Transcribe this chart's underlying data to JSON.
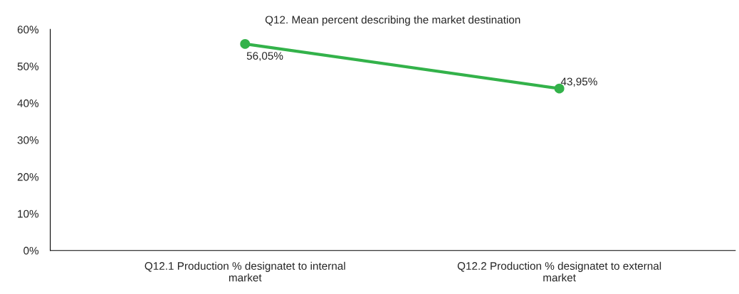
{
  "chart_data": {
    "type": "line",
    "title": "Q12. Mean percent describing the market destination",
    "categories": [
      "Q12.1 Production % designatet to internal\nmarket",
      "Q12.2 Production % designatet to external\nmarket"
    ],
    "series": [
      {
        "color": "#33b24a",
        "values": [
          56.05,
          43.95
        ],
        "value_labels": [
          "56,05%",
          "43,95%"
        ]
      }
    ],
    "ylim": [
      0,
      60
    ],
    "yticks": [
      {
        "value": 0,
        "label": "0%"
      },
      {
        "value": 10,
        "label": "10%"
      },
      {
        "value": 20,
        "label": "20%"
      },
      {
        "value": 30,
        "label": "30%"
      },
      {
        "value": 40,
        "label": "40%"
      },
      {
        "value": 50,
        "label": "50%"
      },
      {
        "value": 60,
        "label": "60%"
      }
    ],
    "marker": "circle",
    "line_style": "solid",
    "grid": false,
    "legend": false
  }
}
